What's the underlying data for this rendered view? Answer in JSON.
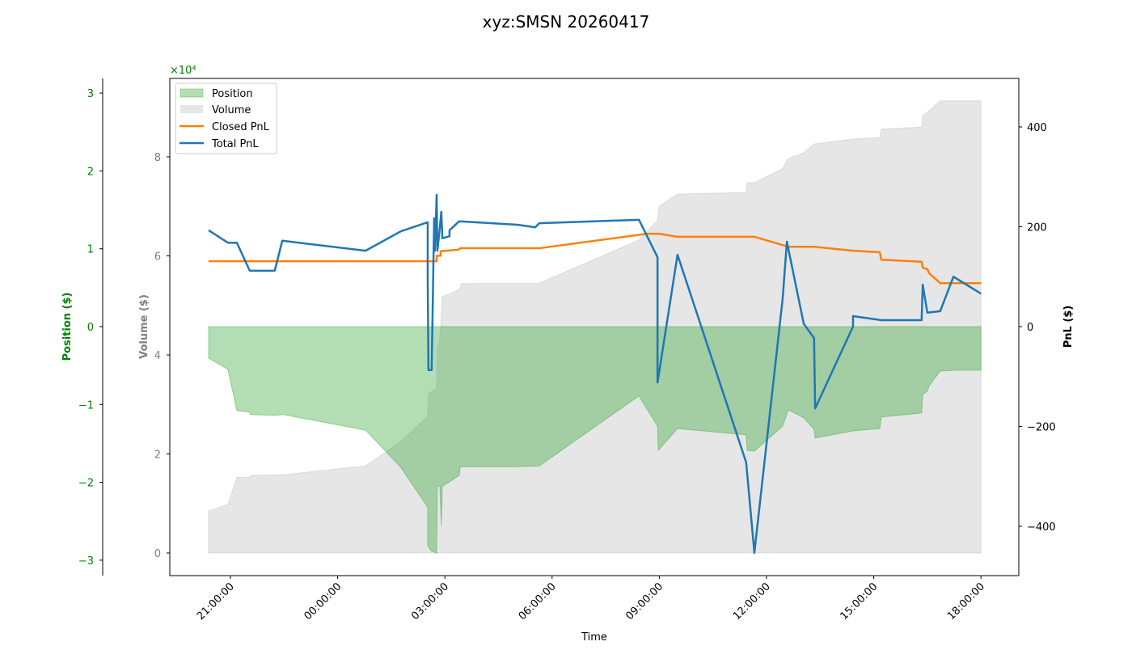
{
  "chart_data": {
    "type": "line",
    "title": "xyz:SMSN 20260417",
    "xlabel": "Time",
    "x_units": "hours after 21:00:00 (first day)",
    "x_ticks": [
      {
        "h": 0,
        "label": "21:00:00"
      },
      {
        "h": 3,
        "label": "00:00:00"
      },
      {
        "h": 6,
        "label": "03:00:00"
      },
      {
        "h": 9,
        "label": "06:00:00"
      },
      {
        "h": 12,
        "label": "09:00:00"
      },
      {
        "h": 15,
        "label": "12:00:00"
      },
      {
        "h": 18,
        "label": "15:00:00"
      },
      {
        "h": 21,
        "label": "18:00:00"
      }
    ],
    "axes": {
      "position": {
        "label": "Position ($)",
        "multiplier_label": "×10⁴",
        "unit_multiplier": 10000,
        "ylim": [
          -3.2,
          3.0
        ],
        "ticks": [
          -3,
          -2,
          -1,
          0,
          1,
          2,
          3
        ],
        "color": "#008000"
      },
      "volume": {
        "label": "Volume ($)",
        "unit_multiplier": 10000,
        "ylim": [
          -0.45,
          9.6
        ],
        "ticks": [
          0,
          2,
          4,
          6,
          8
        ],
        "color": "#808080"
      },
      "pnl": {
        "label": "PnL ($)",
        "ylim": [
          -500,
          500
        ],
        "ticks": [
          -400,
          -200,
          0,
          200,
          400
        ],
        "color": "#000000"
      }
    },
    "legend": {
      "placement": "top-left",
      "entries": [
        "Position",
        "Volume",
        "Closed PnL",
        "Total PnL"
      ]
    },
    "series": [
      {
        "name": "Volume",
        "axis": "volume",
        "kind": "area",
        "color": "#808080",
        "x": [
          -0.61,
          -0.07,
          0.18,
          0.54,
          0.56,
          1.47,
          3.78,
          4.77,
          5.52,
          5.54,
          5.66,
          5.77,
          5.79,
          5.84,
          5.88,
          5.93,
          6.22,
          6.43,
          6.45,
          8.64,
          11.43,
          11.95,
          11.99,
          12.51,
          14.43,
          14.46,
          14.66,
          15.45,
          15.61,
          16.04,
          16.33,
          17.42,
          18.17,
          18.21,
          19.34,
          19.37,
          19.5,
          19.86,
          21.0
        ],
        "values": [
          0.85,
          0.98,
          1.53,
          1.53,
          1.57,
          1.58,
          1.76,
          2.25,
          2.76,
          3.22,
          3.27,
          3.33,
          4.18,
          4.2,
          4.56,
          5.18,
          5.26,
          5.34,
          5.44,
          5.45,
          6.32,
          6.71,
          7.0,
          7.25,
          7.28,
          7.48,
          7.48,
          7.76,
          7.97,
          8.08,
          8.26,
          8.36,
          8.39,
          8.56,
          8.6,
          8.83,
          8.9,
          9.13,
          9.13
        ]
      },
      {
        "name": "Position",
        "axis": "position",
        "kind": "area",
        "color": "#2ca02c",
        "x": [
          -0.61,
          -0.07,
          0.18,
          0.54,
          0.56,
          1.24,
          1.47,
          3.78,
          4.77,
          5.52,
          5.52,
          5.57,
          5.61,
          5.77,
          5.79,
          5.86,
          5.9,
          5.93,
          6.11,
          6.4,
          6.43,
          8.03,
          8.64,
          11.43,
          11.95,
          11.97,
          12.51,
          14.43,
          14.46,
          14.66,
          15.45,
          15.61,
          16.04,
          16.33,
          16.36,
          17.42,
          18.17,
          18.21,
          19.34,
          19.37,
          19.5,
          19.55,
          19.86,
          20.36,
          21.0
        ],
        "values": [
          -0.405,
          -0.55,
          -1.08,
          -1.1,
          -1.13,
          -1.14,
          -1.13,
          -1.33,
          -1.81,
          -2.32,
          -2.81,
          -2.85,
          -2.88,
          -2.91,
          -2.05,
          -2.05,
          -2.56,
          -2.05,
          -2.0,
          -1.91,
          -1.8,
          -1.8,
          -1.79,
          -0.89,
          -1.28,
          -1.59,
          -1.31,
          -1.39,
          -1.59,
          -1.6,
          -1.28,
          -1.07,
          -1.17,
          -1.32,
          -1.43,
          -1.34,
          -1.31,
          -1.16,
          -1.11,
          -0.87,
          -0.83,
          -0.76,
          -0.57,
          -0.56,
          -0.56
        ]
      },
      {
        "name": "Closed PnL",
        "axis": "pnl",
        "kind": "line",
        "color": "#ff7f0e",
        "x": [
          -0.61,
          5.77,
          5.77,
          5.88,
          5.88,
          6.38,
          6.43,
          8.64,
          11.65,
          11.99,
          12.51,
          14.66,
          15.61,
          16.33,
          17.42,
          18.17,
          18.21,
          19.34,
          19.37,
          19.5,
          19.55,
          19.86,
          21.0
        ],
        "values": [
          131,
          131,
          142,
          142,
          151,
          154,
          157,
          157,
          186,
          186,
          180,
          180,
          160,
          160,
          152,
          149,
          134,
          130,
          118,
          115,
          107,
          87,
          87
        ]
      },
      {
        "name": "Total PnL",
        "axis": "pnl",
        "kind": "line",
        "color": "#1f77b4",
        "x": [
          -0.61,
          -0.07,
          0.18,
          0.54,
          1.24,
          1.45,
          3.78,
          4.77,
          5.52,
          5.52,
          5.54,
          5.63,
          5.7,
          5.72,
          5.77,
          5.79,
          5.84,
          5.9,
          5.93,
          6.13,
          6.13,
          6.4,
          8.03,
          8.53,
          8.64,
          11.43,
          11.95,
          11.95,
          12.51,
          14.43,
          14.66,
          15.45,
          15.57,
          16.04,
          16.33,
          16.36,
          17.42,
          17.42,
          18.21,
          19.34,
          19.37,
          19.5,
          19.86,
          20.23,
          21.0
        ],
        "values": [
          193,
          168,
          168,
          112,
          112,
          172,
          152,
          191,
          209,
          96,
          -87,
          -87,
          217,
          152,
          264,
          152,
          185,
          230,
          177,
          181,
          193,
          211,
          204,
          199,
          207,
          214,
          139,
          -112,
          144,
          -272,
          -453,
          55,
          170,
          6,
          -23,
          -164,
          0,
          21,
          13,
          13,
          84,
          28,
          31,
          100,
          66
        ]
      }
    ]
  }
}
